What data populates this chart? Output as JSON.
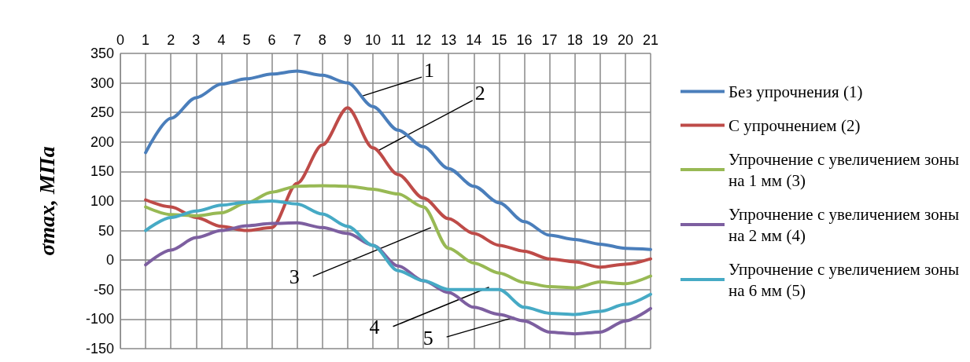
{
  "chart_data": {
    "type": "line",
    "ylabel": "σmax, МПа",
    "x": [
      1,
      2,
      3,
      4,
      5,
      6,
      7,
      8,
      9,
      10,
      11,
      12,
      13,
      14,
      15,
      16,
      17,
      18,
      19,
      20,
      21
    ],
    "xlim": [
      0,
      21
    ],
    "xticks": [
      0,
      1,
      2,
      3,
      4,
      5,
      6,
      7,
      8,
      9,
      10,
      11,
      12,
      13,
      14,
      15,
      16,
      17,
      18,
      19,
      20,
      21
    ],
    "ylim": [
      -150,
      350
    ],
    "yticks": [
      -150,
      -100,
      -50,
      0,
      50,
      100,
      150,
      200,
      250,
      300,
      350
    ],
    "grid": true,
    "legend": "right",
    "marker": "none",
    "line_style": "solid",
    "series": [
      {
        "name": "Без упрочнения (1)",
        "color": "#4a7ebb",
        "values": [
          182,
          240,
          275,
          298,
          307,
          315,
          320,
          313,
          300,
          260,
          220,
          192,
          155,
          125,
          97,
          65,
          42,
          35,
          27,
          20,
          18
        ]
      },
      {
        "name": "С упрочнением (2)",
        "color": "#be4b48",
        "values": [
          102,
          90,
          72,
          57,
          50,
          55,
          130,
          195,
          258,
          190,
          145,
          105,
          70,
          45,
          25,
          15,
          2,
          -3,
          -12,
          -7,
          2
        ]
      },
      {
        "name": "Упрочнение с увеличением зоны на 1 мм (3)",
        "color": "#98b954",
        "values": [
          90,
          77,
          75,
          80,
          97,
          115,
          125,
          126,
          125,
          120,
          112,
          90,
          20,
          -5,
          -22,
          -38,
          -45,
          -47,
          -37,
          -40,
          -27
        ]
      },
      {
        "name": "Упрочнение с увеличением зоны на 2 мм (4)",
        "color": "#7d5fa0",
        "values": [
          -8,
          17,
          38,
          50,
          58,
          62,
          63,
          55,
          45,
          25,
          -10,
          -35,
          -55,
          -80,
          -92,
          -103,
          -122,
          -125,
          -122,
          -103,
          -82
        ]
      },
      {
        "name": "Упрочнение с увеличением зоны на 6 мм (5)",
        "color": "#46aac5",
        "values": [
          50,
          72,
          83,
          93,
          98,
          100,
          95,
          78,
          57,
          25,
          -18,
          -35,
          -50,
          -50,
          -50,
          -80,
          -90,
          -92,
          -87,
          -75,
          -58
        ]
      }
    ],
    "annotations": [
      {
        "text": "1",
        "x": 9.6,
        "y": 278
      },
      {
        "text": "2",
        "x": 10.15,
        "y": 184
      },
      {
        "text": "3",
        "x": 12.3,
        "y": 55
      },
      {
        "text": "4",
        "x": 14.6,
        "y": -46
      },
      {
        "text": "5",
        "x": 15.6,
        "y": -97
      }
    ]
  }
}
